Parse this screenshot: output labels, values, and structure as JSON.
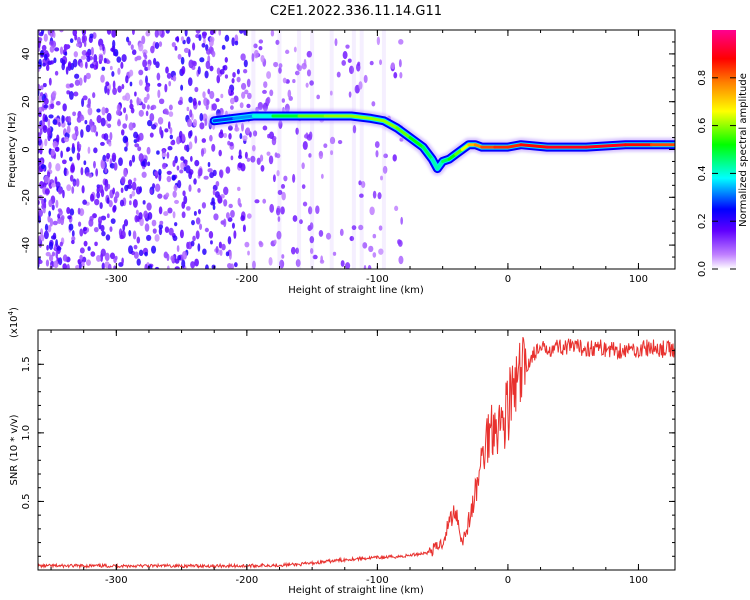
{
  "title": "C2E1.2022.336.11.14.G11",
  "chart_data": [
    {
      "type": "heatmap",
      "xlabel": "Height of straight line (km)",
      "ylabel": "Frequency (Hz)",
      "xlim": [
        -360,
        128
      ],
      "ylim": [
        -50,
        50
      ],
      "xticks": [
        -300,
        -200,
        -100,
        0,
        100
      ],
      "yticks": [
        -40,
        -20,
        0,
        20,
        40
      ],
      "colorbar": {
        "label": "Normalized spectral amplitude",
        "range": [
          0,
          1
        ],
        "ticks": [
          "0.0",
          "0.2",
          "0.4",
          "0.6",
          "0.8"
        ],
        "tick_values": [
          0,
          0.2,
          0.4,
          0.6,
          0.8
        ],
        "colors": [
          "#ffffff",
          "#a000ff",
          "#0000ff",
          "#00ffff",
          "#00ff00",
          "#ffff00",
          "#ff0000",
          "#ff0080"
        ]
      },
      "ridge": {
        "x": [
          -225,
          -210,
          -195,
          -180,
          -160,
          -140,
          -120,
          -105,
          -95,
          -85,
          -75,
          -65,
          -58,
          -54,
          -50,
          -45,
          -40,
          -35,
          -30,
          -25,
          -20,
          -10,
          0,
          10,
          30,
          60,
          90,
          110,
          128
        ],
        "y": [
          12,
          13,
          14,
          14,
          14,
          14,
          14,
          13,
          12,
          9,
          5,
          1,
          -4,
          -8,
          -5,
          -4,
          -2,
          0,
          2,
          2,
          1,
          1,
          1,
          2,
          1,
          1,
          2,
          2,
          2
        ],
        "amplitude": [
          0.25,
          0.3,
          0.35,
          0.45,
          0.55,
          0.6,
          0.6,
          0.6,
          0.6,
          0.6,
          0.55,
          0.5,
          0.45,
          0.4,
          0.45,
          0.5,
          0.55,
          0.6,
          0.7,
          0.75,
          0.8,
          0.85,
          0.85,
          0.85,
          0.9,
          0.9,
          0.9,
          0.85,
          0.8
        ]
      }
    },
    {
      "type": "line",
      "xlabel": "Height of straight line (km)",
      "ylabel": "SNR (10 * v/v)",
      "yscale_label": "(x10",
      "yscale_exp": "4",
      "yscale_close": ")",
      "xlim": [
        -360,
        128
      ],
      "ylim": [
        0,
        1.75
      ],
      "xticks": [
        -300,
        -200,
        -100,
        0,
        100
      ],
      "yticks": [
        0.5,
        1.0,
        1.5
      ],
      "ytick_labels": [
        "0.5",
        "1.0",
        "1.5"
      ],
      "series": [
        {
          "color": "#e8312e",
          "x": [
            -360,
            -300,
            -250,
            -200,
            -160,
            -140,
            -120,
            -100,
            -80,
            -60,
            -50,
            -45,
            -40,
            -35,
            -30,
            -25,
            -20,
            -15,
            -10,
            -5,
            0,
            5,
            10,
            15,
            20,
            25,
            30,
            40,
            50,
            70,
            90,
            110,
            128
          ],
          "y": [
            0.03,
            0.03,
            0.03,
            0.03,
            0.04,
            0.06,
            0.08,
            0.09,
            0.1,
            0.13,
            0.2,
            0.35,
            0.45,
            0.2,
            0.35,
            0.55,
            0.8,
            1.0,
            1.1,
            1.05,
            1.2,
            1.3,
            1.4,
            1.5,
            1.58,
            1.6,
            1.62,
            1.63,
            1.62,
            1.62,
            1.6,
            1.62,
            1.6
          ]
        }
      ]
    }
  ]
}
